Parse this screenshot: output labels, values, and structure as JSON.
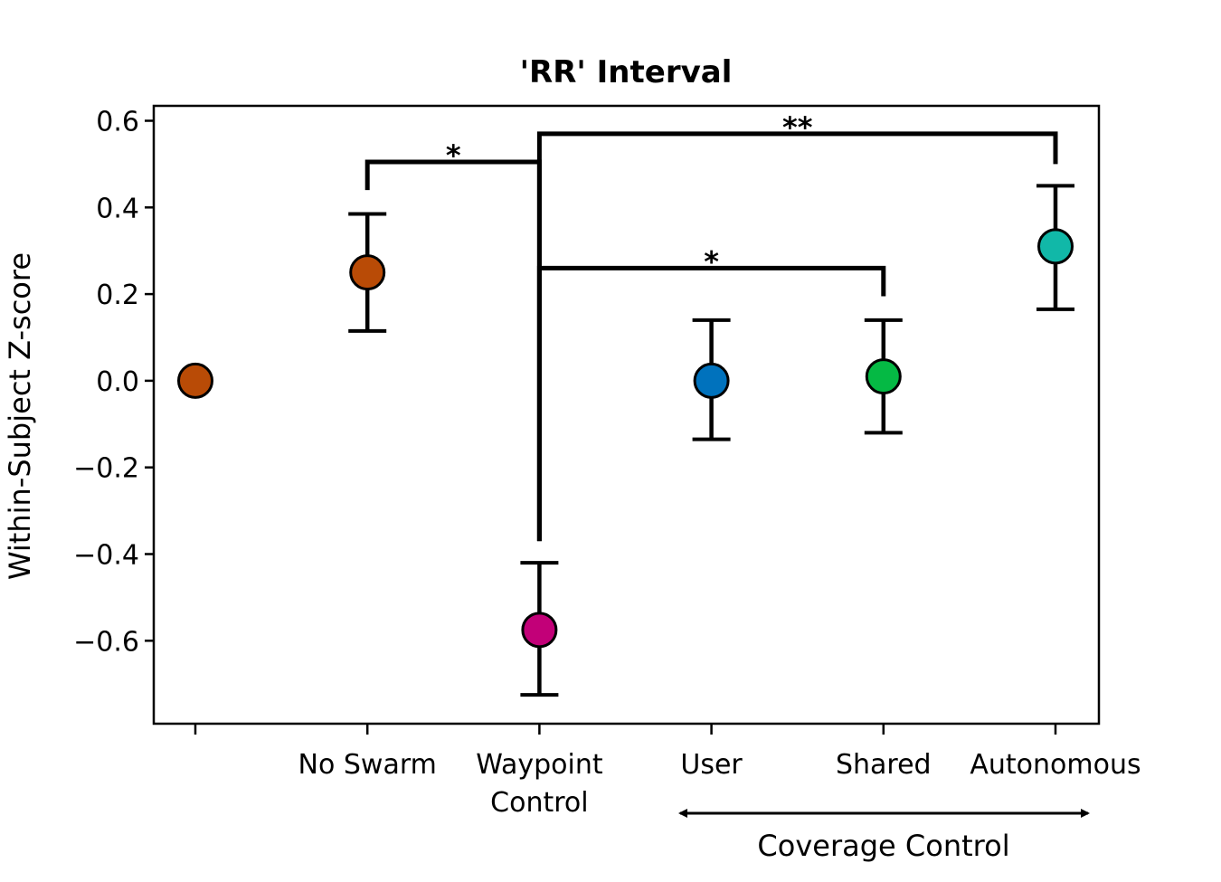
{
  "chart_data": {
    "type": "scatter",
    "title": "'RR' Interval",
    "xlabel": "",
    "ylabel": "Within-Subject Z-score",
    "ylim": [
      -0.8,
      0.63
    ],
    "yticks": [
      0.6,
      0.4,
      0.2,
      0.0,
      -0.2,
      -0.4,
      -0.6
    ],
    "ytick_labels": [
      "0.6",
      "0.4",
      "0.2",
      "0.0",
      "−0.2",
      "−0.4",
      "−0.6"
    ],
    "grid": false,
    "categories": [
      "",
      "No Swarm",
      "Waypoint Control",
      "User",
      "Shared",
      "Autonomous"
    ],
    "category_lines": [
      [
        ""
      ],
      [
        "No Swarm"
      ],
      [
        "Waypoint",
        "Control"
      ],
      [
        "User"
      ],
      [
        "Shared"
      ],
      [
        "Autonomous"
      ]
    ],
    "points": [
      {
        "category": "",
        "mean": 0.0,
        "err_low": null,
        "err_high": null,
        "color": "#b94b06"
      },
      {
        "category": "No Swarm",
        "mean": 0.25,
        "err_low": 0.115,
        "err_high": 0.385,
        "color": "#b94b06"
      },
      {
        "category": "Waypoint Control",
        "mean": -0.575,
        "err_low": -0.725,
        "err_high": -0.42,
        "color": "#c20078"
      },
      {
        "category": "User",
        "mean": 0.0,
        "err_low": -0.135,
        "err_high": 0.14,
        "color": "#0072bd"
      },
      {
        "category": "Shared",
        "mean": 0.01,
        "err_low": -0.12,
        "err_high": 0.14,
        "color": "#05b944"
      },
      {
        "category": "Autonomous",
        "mean": 0.31,
        "err_low": 0.165,
        "err_high": 0.45,
        "color": "#11b8a8"
      }
    ],
    "significance": [
      {
        "from": 1,
        "to": 2,
        "y": 0.505,
        "left_end": 0.44,
        "right_end": -0.37,
        "label": "*"
      },
      {
        "from": 2,
        "to": 5,
        "y": 0.57,
        "left_end": -0.37,
        "right_end": 0.5,
        "label": "**"
      },
      {
        "from": 2,
        "to": 4,
        "y": 0.26,
        "left_end": -0.37,
        "right_end": 0.195,
        "label": "*"
      }
    ],
    "group_annotation": {
      "label": "Coverage Control",
      "spans": [
        "User",
        "Autonomous"
      ],
      "arrow": "double"
    }
  }
}
